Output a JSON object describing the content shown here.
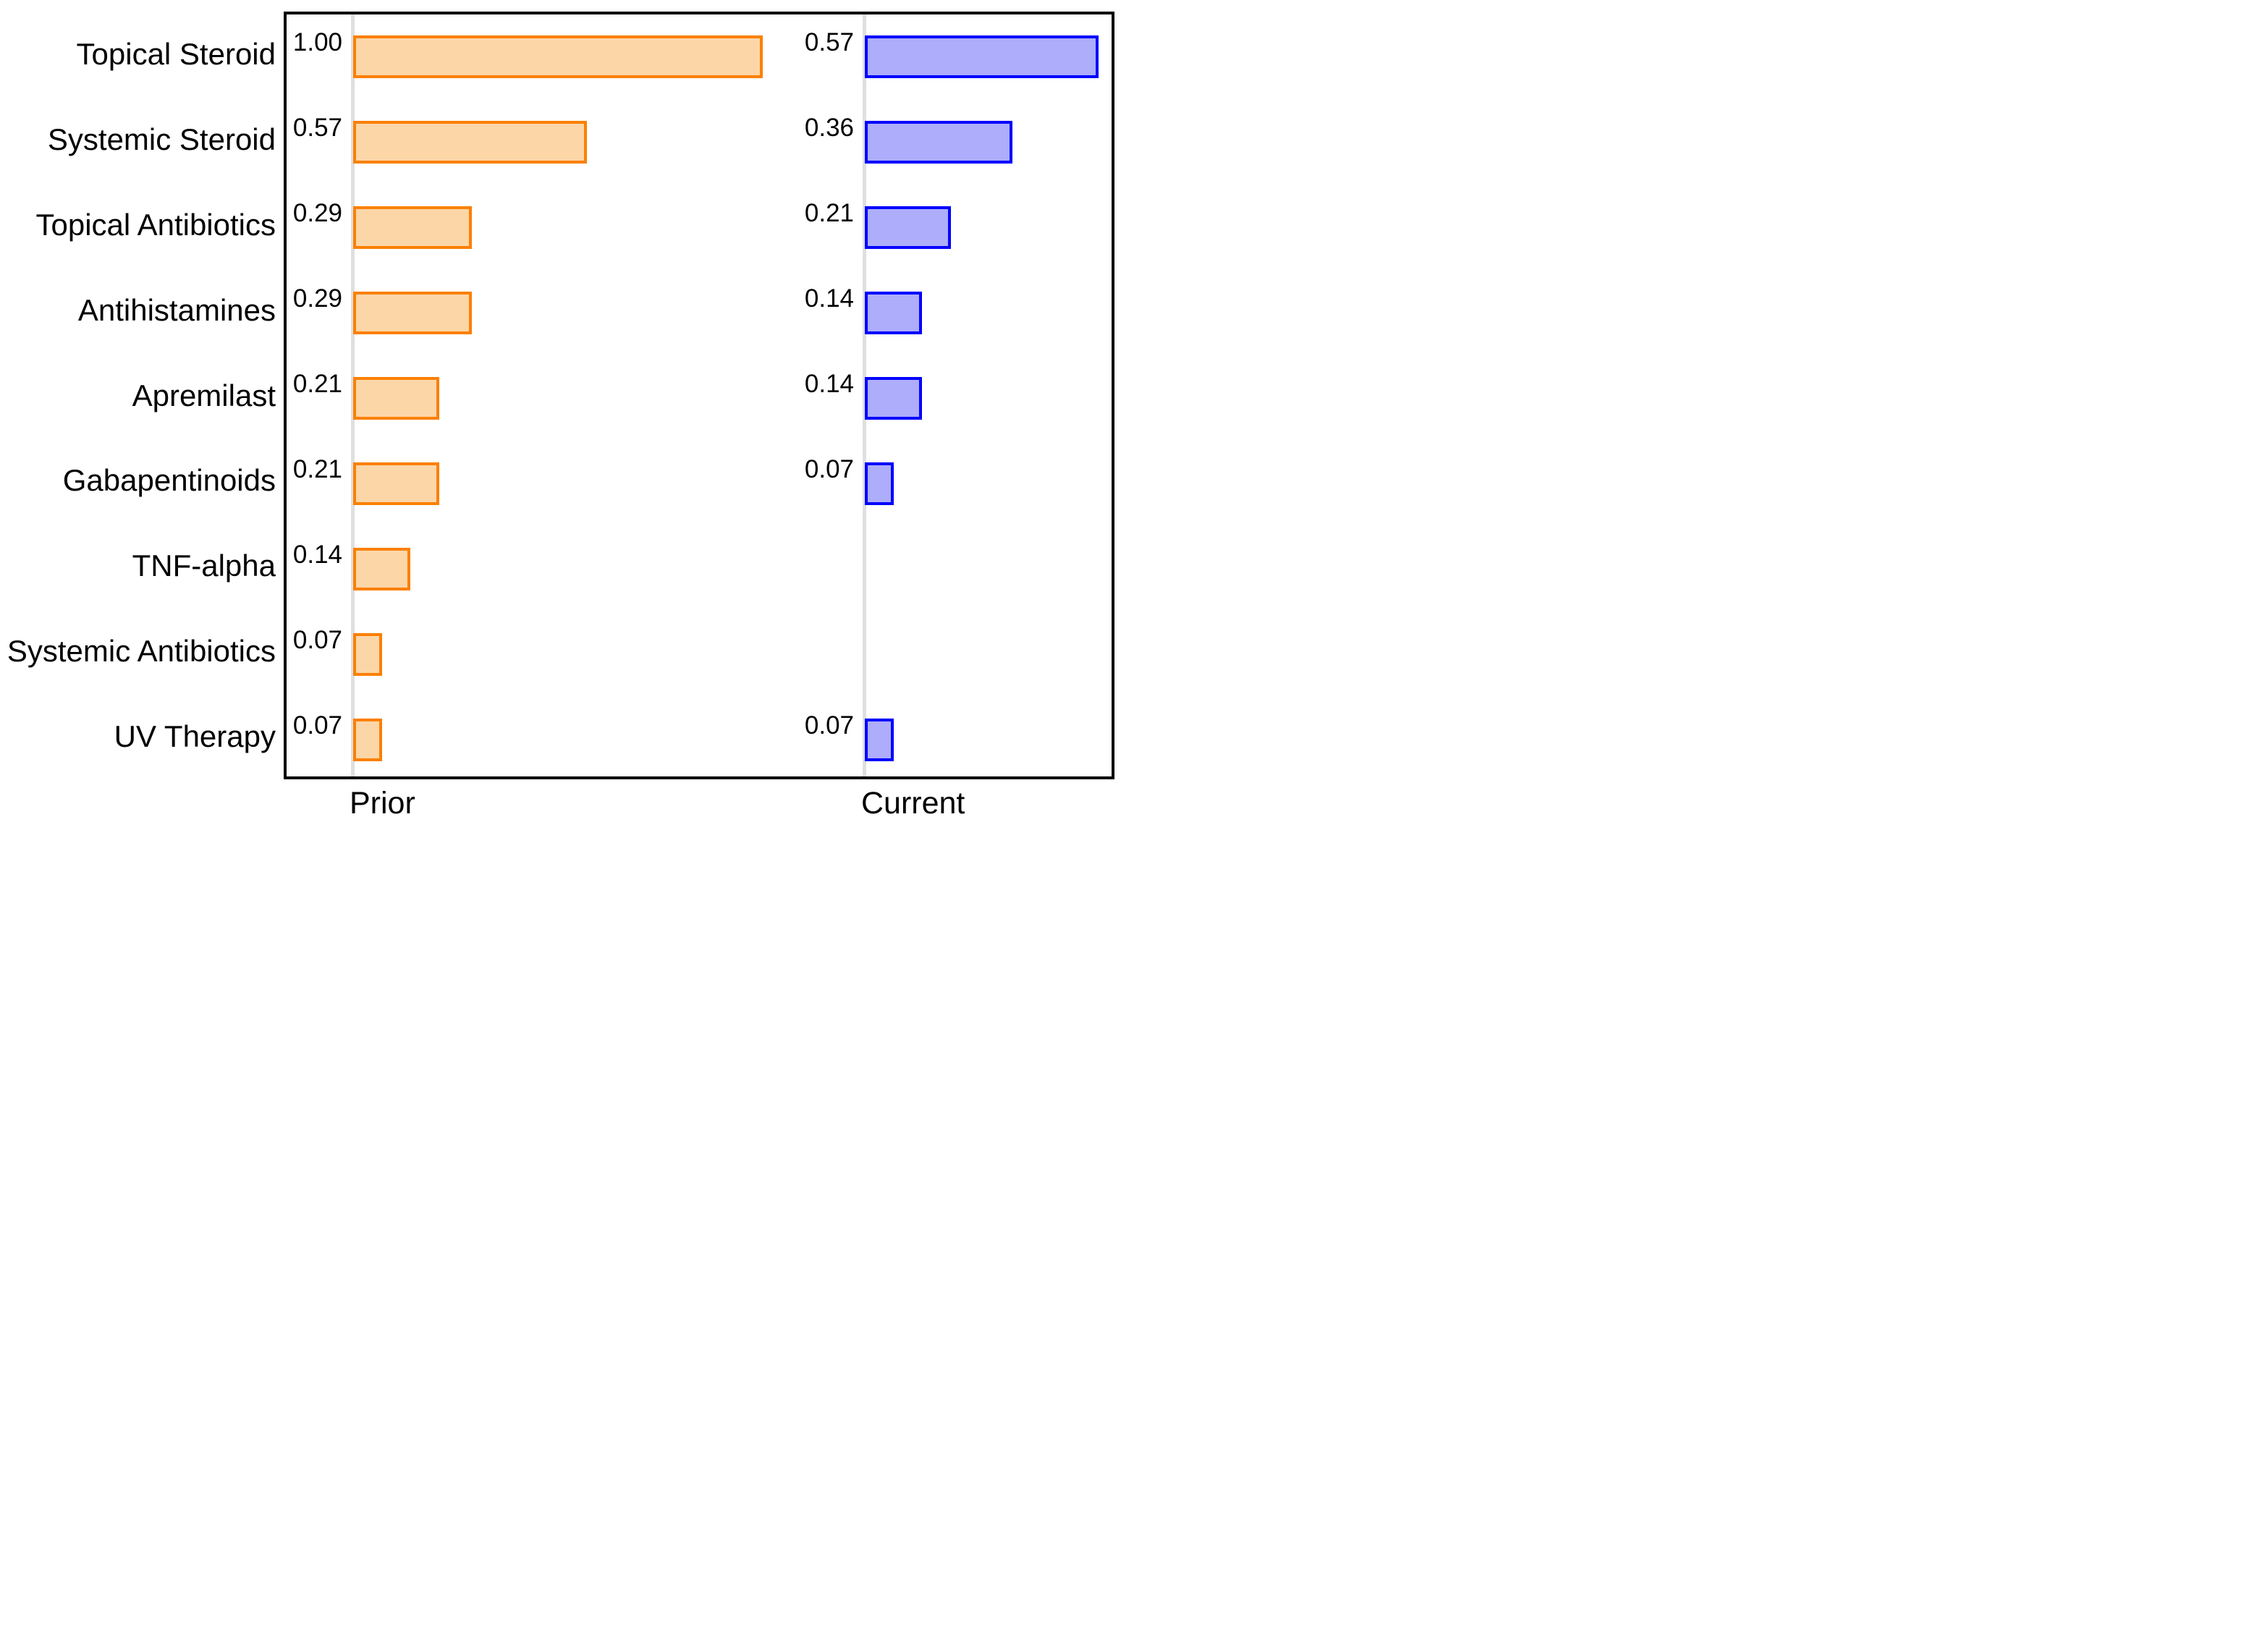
{
  "figure": {
    "background_color": "#ffffff",
    "frame_color": "#000000",
    "axis_line_color": "#dfdfdf",
    "text_color": "#000000"
  },
  "chart_data": {
    "type": "bar",
    "orientation": "horizontal",
    "title": "",
    "xlabel": "",
    "ylabel": "",
    "grid": false,
    "legend": false,
    "xlim_per_panel": [
      0,
      1.25
    ],
    "value_label_decimals": 2,
    "categories": [
      "Topical Steroid",
      "Systemic Steroid",
      "Topical Antibiotics",
      "Antihistamines",
      "Apremilast",
      "Gabapentinoids",
      "TNF-alpha",
      "Systemic Antibiotics",
      "UV Therapy"
    ],
    "panels": [
      {
        "label": "Prior",
        "bar_fill": "#fdd6a8",
        "bar_border": "#fb8000",
        "values": [
          1.0,
          0.57,
          0.29,
          0.29,
          0.21,
          0.21,
          0.14,
          0.07,
          0.07
        ]
      },
      {
        "label": "Current",
        "bar_fill": "#adadfb",
        "bar_border": "#0000ff",
        "values": [
          0.57,
          0.36,
          0.21,
          0.14,
          0.14,
          0.07,
          null,
          null,
          0.07
        ]
      }
    ]
  }
}
